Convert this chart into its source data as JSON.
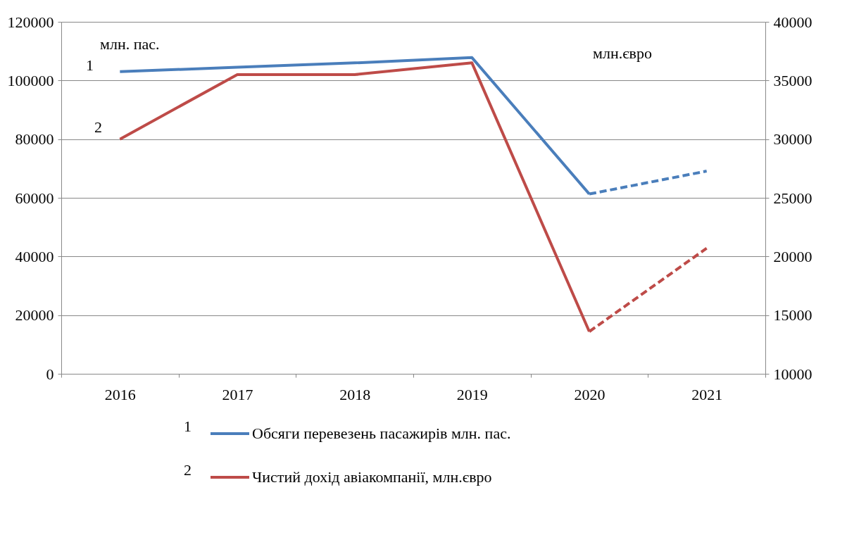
{
  "chart_data": {
    "type": "line",
    "categories": [
      "2016",
      "2017",
      "2018",
      "2019",
      "2020",
      "2021"
    ],
    "series": [
      {
        "name": "Обсяги перевезень пасажирів  млн.   пас.",
        "color": "#4a7ebb",
        "axis": "y",
        "line_style": "solid",
        "values": [
          103000,
          104500,
          106000,
          107800,
          61300,
          null
        ]
      },
      {
        "color": "#4a7ebb",
        "axis": "y",
        "line_style": "dashed",
        "values": [
          null,
          null,
          null,
          null,
          61300,
          69100
        ]
      },
      {
        "name": "Чистий дохід авіакомпанії, млн.євро",
        "color": "#be4b48",
        "axis": "y2",
        "line_style": "solid",
        "values": [
          30000,
          35500,
          35500,
          36500,
          13600,
          null
        ]
      },
      {
        "color": "#be4b48",
        "axis": "y2",
        "line_style": "dashed",
        "values": [
          null,
          null,
          null,
          null,
          13600,
          20700
        ]
      }
    ],
    "ylim": [
      0,
      120000
    ],
    "yticks": [
      0,
      20000,
      40000,
      60000,
      80000,
      100000,
      120000
    ],
    "y2lim": [
      10000,
      40000
    ],
    "y2ticks": [
      10000,
      15000,
      20000,
      25000,
      30000,
      35000,
      40000
    ],
    "grid": "y",
    "legend": "bottom",
    "marker": "none",
    "annotations": [
      "млн. пас.",
      "млн.євро",
      "1",
      "2",
      "1",
      "2"
    ]
  }
}
